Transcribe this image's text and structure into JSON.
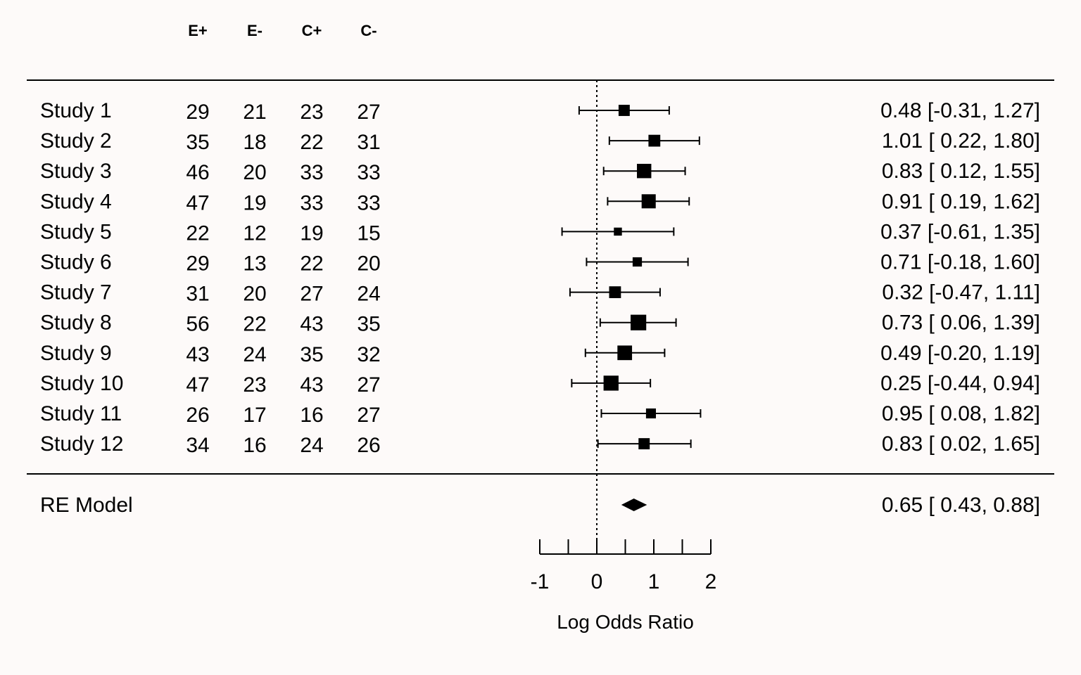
{
  "chart_data": {
    "type": "forest",
    "xlabel": "Log Odds Ratio",
    "xlim": [
      -1,
      2
    ],
    "ticks": [
      -1,
      -0.5,
      0,
      0.5,
      1,
      1.5,
      2
    ],
    "tick_labels": [
      "-1",
      "0",
      "1",
      "2"
    ],
    "tick_label_values": [
      -1,
      0,
      1,
      2
    ],
    "reference_line": 0,
    "columns": [
      "E+",
      "E-",
      "C+",
      "C-"
    ],
    "studies": [
      {
        "name": "Study 1",
        "counts": [
          "29",
          "21",
          "23",
          "27"
        ],
        "estimate": 0.48,
        "lower": -0.31,
        "upper": 1.27,
        "weight": 0.55,
        "label": "0.48 [-0.31, 1.27]"
      },
      {
        "name": "Study 2",
        "counts": [
          "35",
          "18",
          "22",
          "31"
        ],
        "estimate": 1.01,
        "lower": 0.22,
        "upper": 1.8,
        "weight": 0.6,
        "label": "1.01 [ 0.22, 1.80]"
      },
      {
        "name": "Study 3",
        "counts": [
          "46",
          "20",
          "33",
          "33"
        ],
        "estimate": 0.83,
        "lower": 0.12,
        "upper": 1.55,
        "weight": 0.8,
        "label": "0.83 [ 0.12, 1.55]"
      },
      {
        "name": "Study 4",
        "counts": [
          "47",
          "19",
          "33",
          "33"
        ],
        "estimate": 0.91,
        "lower": 0.19,
        "upper": 1.62,
        "weight": 0.78,
        "label": "0.91 [ 0.19, 1.62]"
      },
      {
        "name": "Study 5",
        "counts": [
          "22",
          "12",
          "19",
          "15"
        ],
        "estimate": 0.37,
        "lower": -0.61,
        "upper": 1.35,
        "weight": 0.3,
        "label": "0.37 [-0.61, 1.35]"
      },
      {
        "name": "Study 6",
        "counts": [
          "29",
          "13",
          "22",
          "20"
        ],
        "estimate": 0.71,
        "lower": -0.18,
        "upper": 1.6,
        "weight": 0.4,
        "label": "0.71 [-0.18, 1.60]"
      },
      {
        "name": "Study 7",
        "counts": [
          "31",
          "20",
          "27",
          "24"
        ],
        "estimate": 0.32,
        "lower": -0.47,
        "upper": 1.11,
        "weight": 0.6,
        "label": "0.32 [-0.47, 1.11]"
      },
      {
        "name": "Study 8",
        "counts": [
          "56",
          "22",
          "43",
          "35"
        ],
        "estimate": 0.73,
        "lower": 0.06,
        "upper": 1.39,
        "weight": 0.9,
        "label": "0.73 [ 0.06, 1.39]"
      },
      {
        "name": "Study 9",
        "counts": [
          "43",
          "24",
          "35",
          "32"
        ],
        "estimate": 0.49,
        "lower": -0.2,
        "upper": 1.19,
        "weight": 0.82,
        "label": "0.49 [-0.20, 1.19]"
      },
      {
        "name": "Study 10",
        "counts": [
          "47",
          "23",
          "43",
          "27"
        ],
        "estimate": 0.25,
        "lower": -0.44,
        "upper": 0.94,
        "weight": 0.85,
        "label": "0.25 [-0.44, 0.94]"
      },
      {
        "name": "Study 11",
        "counts": [
          "26",
          "17",
          "16",
          "27"
        ],
        "estimate": 0.95,
        "lower": 0.08,
        "upper": 1.82,
        "weight": 0.45,
        "label": "0.95 [ 0.08, 1.82]"
      },
      {
        "name": "Study 12",
        "counts": [
          "34",
          "16",
          "24",
          "26"
        ],
        "estimate": 0.83,
        "lower": 0.02,
        "upper": 1.65,
        "weight": 0.55,
        "label": "0.83 [ 0.02, 1.65]"
      }
    ],
    "summary": {
      "name": "RE Model",
      "estimate": 0.65,
      "lower": 0.43,
      "upper": 0.88,
      "label": "0.65 [ 0.43, 0.88]"
    }
  }
}
